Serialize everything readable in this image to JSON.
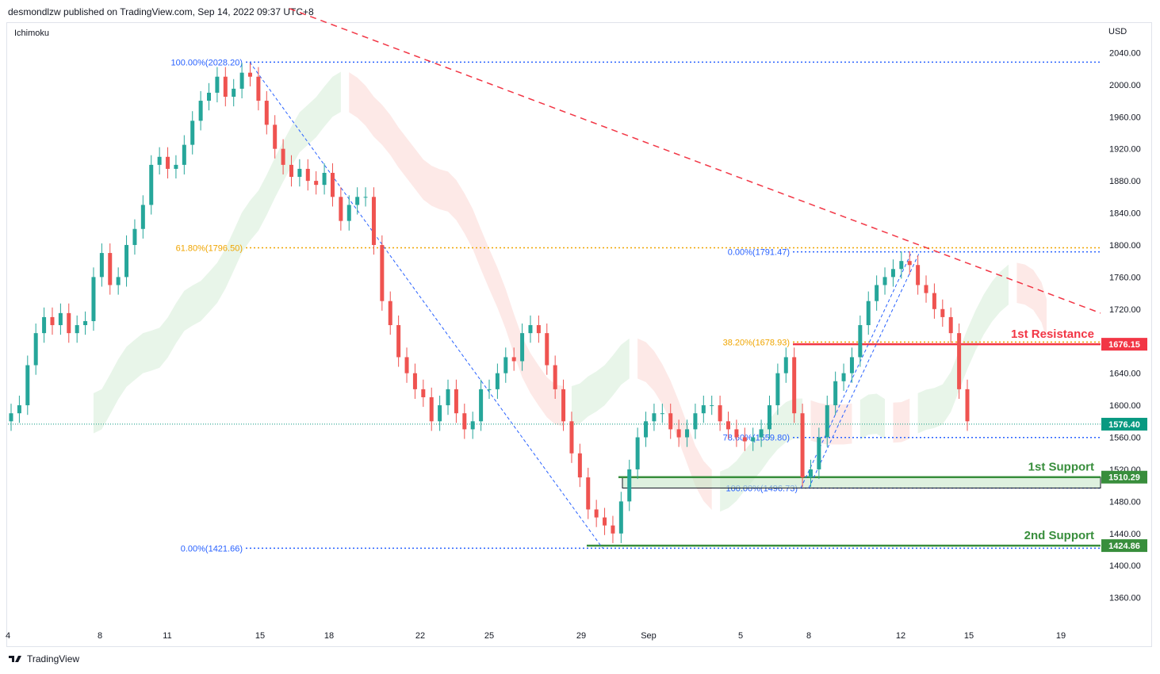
{
  "header": {
    "publisher": "desmondlzw published on TradingView.com, Sep 14, 2022 09:37 UTC+8"
  },
  "indicator_label": "Ichimoku",
  "currency_label": "USD",
  "footer": {
    "brand": "TradingView",
    "logo_icon": "tradingview-logo-icon"
  },
  "colors": {
    "bull": "#26a69a",
    "bear": "#ef5350",
    "cloud_bull": "#e8f5e9",
    "cloud_bear": "#fde9e7",
    "fib_blue": "#2962ff",
    "fib_orange": "#f0a500",
    "trendline": "#f23645",
    "resistance": "#f23645",
    "support": "#388e3c",
    "last_price": "#089981"
  },
  "chart_data": {
    "type": "candlestick",
    "y_axis": {
      "ticks": [
        "2040.00",
        "2000.00",
        "1960.00",
        "1920.00",
        "1880.00",
        "1840.00",
        "1800.00",
        "1760.00",
        "1720.00",
        "1680.00",
        "1640.00",
        "1600.00",
        "1560.00",
        "1520.00",
        "1480.00",
        "1440.00",
        "1400.00",
        "1360.00"
      ],
      "ylim": [
        1326,
        2078
      ]
    },
    "x_axis": {
      "ticks": [
        "4",
        "8",
        "11",
        "15",
        "18",
        "22",
        "25",
        "29",
        "Sep",
        "5",
        "8",
        "12",
        "15",
        "19"
      ]
    },
    "series_close": [
      1590,
      1600,
      1650,
      1690,
      1710,
      1700,
      1715,
      1690,
      1700,
      1705,
      1760,
      1790,
      1750,
      1760,
      1800,
      1820,
      1850,
      1900,
      1910,
      1895,
      1900,
      1925,
      1955,
      1980,
      1990,
      2010,
      1985,
      1995,
      2015,
      2010,
      1980,
      1950,
      1920,
      1900,
      1885,
      1895,
      1880,
      1875,
      1890,
      1860,
      1830,
      1850,
      1860,
      1860,
      1800,
      1730,
      1700,
      1660,
      1640,
      1620,
      1610,
      1580,
      1600,
      1620,
      1590,
      1570,
      1580,
      1620,
      1620,
      1640,
      1660,
      1655,
      1690,
      1700,
      1690,
      1650,
      1620,
      1580,
      1540,
      1510,
      1470,
      1460,
      1450,
      1440,
      1480,
      1520,
      1560,
      1580,
      1590,
      1590,
      1570,
      1560,
      1570,
      1590,
      1600,
      1600,
      1580,
      1570,
      1560,
      1555,
      1560,
      1570,
      1600,
      1640,
      1660,
      1590,
      1510,
      1520,
      1560,
      1600,
      1630,
      1640,
      1660,
      1700,
      1730,
      1750,
      1760,
      1770,
      1780,
      1775,
      1750,
      1740,
      1720,
      1710,
      1690,
      1620,
      1580
    ],
    "series_ohlc_note": "",
    "levels": [
      {
        "label": "100.00%(2028.20)",
        "value": 2028.2
      },
      {
        "label": "61.80%(1796.50)",
        "value": 1796.5
      },
      {
        "label": "0.00%(1421.66)",
        "value": 1421.66
      },
      {
        "label": "0.00%(1791.47)",
        "value": 1791.47
      },
      {
        "label": "38.20%(1678.93)",
        "value": 1678.93
      },
      {
        "label": "78.60%(1559.80)",
        "value": 1559.8
      },
      {
        "label": "100.00%(1496.73)",
        "value": 1496.73
      }
    ],
    "zones": [
      {
        "label": "1st Resistance",
        "price_tag": "1676.15",
        "value": 1676.15
      },
      {
        "label": "1st Support",
        "price_tag": "1510.29",
        "value": 1510.29
      },
      {
        "label": "2nd Support",
        "price_tag": "1424.86",
        "value": 1424.86
      }
    ],
    "last_price": "1576.40",
    "trendline": {
      "start": [
        0,
        2095
      ],
      "end": [
        117,
        1715
      ]
    }
  }
}
